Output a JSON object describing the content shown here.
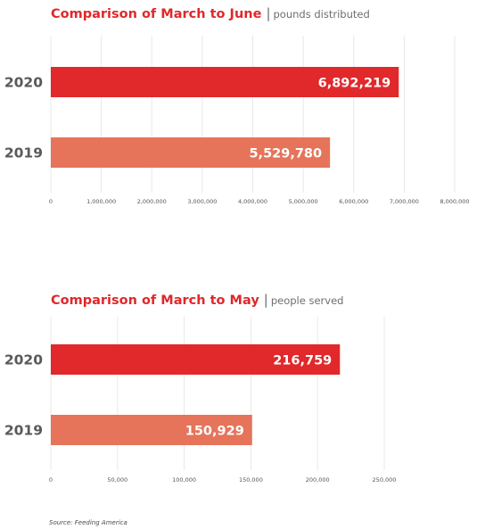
{
  "colors": {
    "bar_2020": "#e1282b",
    "bar_2019": "#e5745a",
    "title": "#e0282b",
    "grid": "#e8e8e8"
  },
  "chart_data": [
    {
      "type": "bar",
      "orientation": "horizontal",
      "title": "Comparison of March to June",
      "subtitle": "pounds distributed",
      "categories": [
        "2020",
        "2019"
      ],
      "values": [
        6892219,
        5529780
      ],
      "value_labels": [
        "6,892,219",
        "5,529,780"
      ],
      "xlim": [
        0,
        8000000
      ],
      "ticks": [
        0,
        1000000,
        2000000,
        3000000,
        4000000,
        5000000,
        6000000,
        7000000,
        8000000
      ],
      "tick_labels": [
        "0",
        "1,000,000",
        "2,000,000",
        "3,000,000",
        "4,000,000",
        "5,000,000",
        "6,000,000",
        "7,000,000",
        "8,000,000"
      ],
      "grid": true,
      "legend": "none"
    },
    {
      "type": "bar",
      "orientation": "horizontal",
      "title": "Comparison of March to May",
      "subtitle": "people served",
      "categories": [
        "2020",
        "2019"
      ],
      "values": [
        216759,
        150929
      ],
      "value_labels": [
        "216,759",
        "150,929"
      ],
      "xlim": [
        0,
        250000
      ],
      "ticks": [
        0,
        50000,
        100000,
        150000,
        200000,
        250000
      ],
      "tick_labels": [
        "0",
        "50,000",
        "100,000",
        "150,000",
        "200,000",
        "250,000"
      ],
      "grid": true,
      "legend": "none"
    }
  ],
  "source": "Source: Feeding America"
}
